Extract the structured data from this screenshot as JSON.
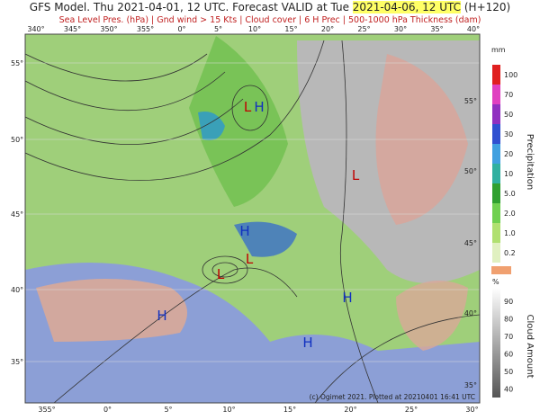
{
  "header": {
    "title_prefix": "GFS Model. Thu 2021-04-01, 12 UTC. Forecast VALID at Tue ",
    "title_highlight": "2021-04-06, 12 UTC",
    "title_suffix": " (H+120)",
    "subtitle": "Sea Level Pres. (hPa) | Gnd wind > 15 Kts | Cloud cover | 6 H Prec | 500-1000 hPa Thickness (dam)"
  },
  "map": {
    "top_longitudes": [
      "340°",
      "345°",
      "350°",
      "355°",
      "0°",
      "5°",
      "10°",
      "15°",
      "20°",
      "25°",
      "30°",
      "35°",
      "40°"
    ],
    "bottom_longitudes": [
      "355°",
      "0°",
      "5°",
      "10°",
      "15°",
      "20°",
      "25°",
      "30°"
    ],
    "left_latitudes": [
      "55°",
      "50°",
      "45°",
      "40°",
      "35°"
    ],
    "right_latitudes": [
      "55°",
      "50°",
      "45°",
      "40°",
      "35°"
    ],
    "centers": [
      "L",
      "H",
      "H",
      "L",
      "L",
      "H",
      "H",
      "H",
      "L"
    ],
    "credit": "(c) Ogimet 2021. Plotted at 20210401 16:41 UTC"
  },
  "precipitation_legend": {
    "unit": "mm",
    "title": "Precipitation",
    "ticks": [
      "100",
      "70",
      "50",
      "30",
      "20",
      "10",
      "5.0",
      "2.0",
      "1.0",
      "0.2"
    ]
  },
  "cloud_legend": {
    "unit": "%",
    "title": "Cloud Amount",
    "ticks": [
      "90",
      "80",
      "70",
      "60",
      "50",
      "40"
    ]
  }
}
